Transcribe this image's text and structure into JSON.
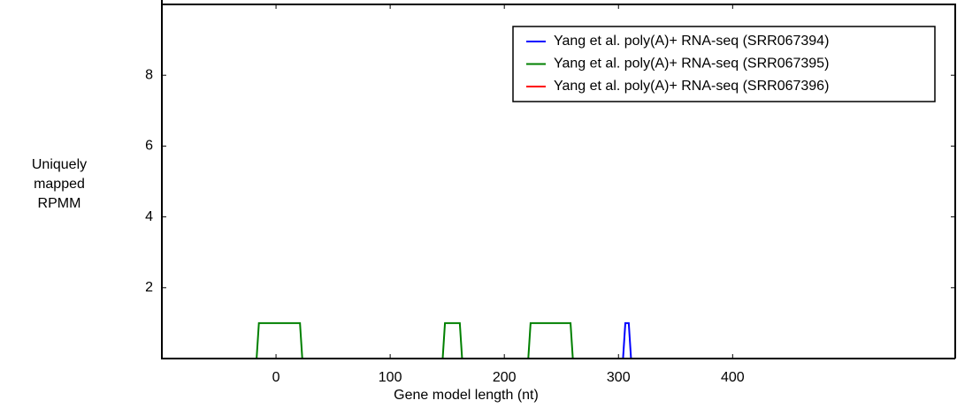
{
  "chart_data": {
    "type": "line",
    "xlabel": "Gene model length (nt)",
    "ylabel": "Uniquely mapped RPMM",
    "xlim": [
      -100,
      595
    ],
    "ylim": [
      0,
      10
    ],
    "xticks": [
      0,
      100,
      200,
      300,
      400
    ],
    "yticks": [
      2,
      4,
      6,
      8
    ],
    "legend": "upper right",
    "series": [
      {
        "name": "Yang et al. poly(A)+ RNA-seq (SRR067394)",
        "color": "#0000ff",
        "x": [
          -100,
          304,
          306,
          309,
          311,
          590
        ],
        "values": [
          0,
          0,
          1,
          1,
          0,
          0
        ]
      },
      {
        "name": "Yang et al. poly(A)+ RNA-seq (SRR067395)",
        "color": "#008000",
        "x": [
          -100,
          -17,
          -15,
          21,
          23,
          146,
          148,
          161,
          163,
          221,
          223,
          258,
          260,
          565
        ],
        "values": [
          0,
          0,
          1,
          1,
          0,
          0,
          1,
          1,
          0,
          0,
          1,
          1,
          0,
          0
        ]
      },
      {
        "name": "Yang et al. poly(A)+ RNA-seq (SRR067396)",
        "color": "#ff0000",
        "x": [
          -100,
          590
        ],
        "values": [
          0,
          0
        ]
      }
    ]
  }
}
